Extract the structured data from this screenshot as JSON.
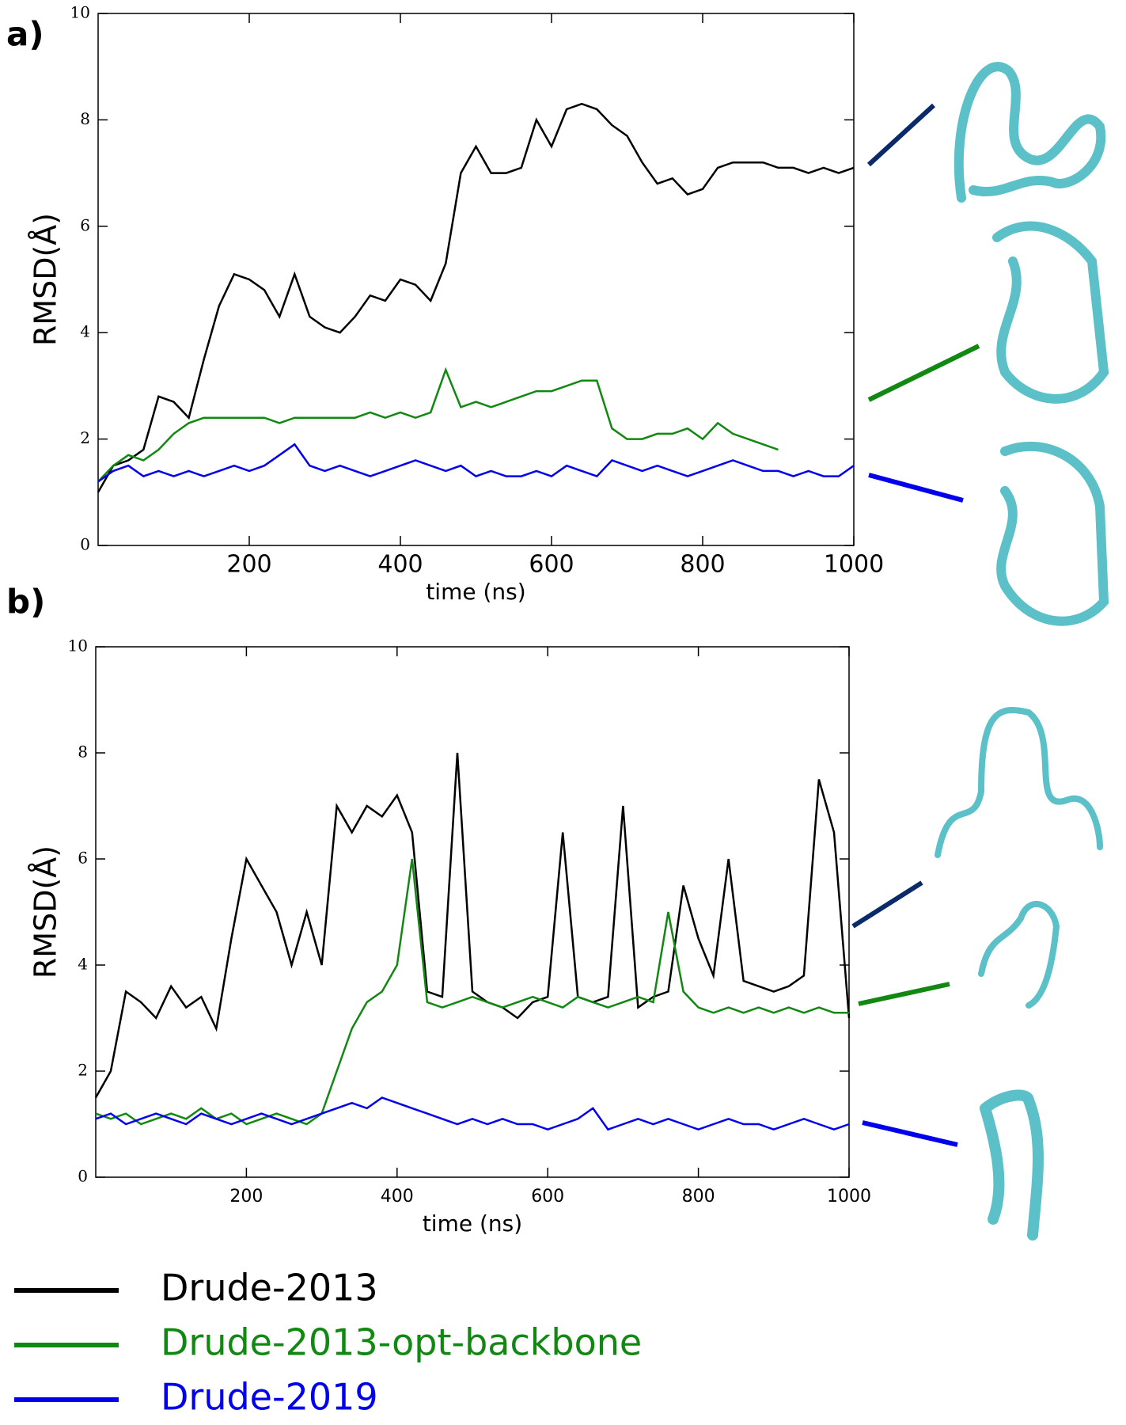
{
  "chart_data": [
    {
      "type": "line",
      "label": "a)",
      "ylabel": "RMSD(Å)",
      "xlabel": "time (ns)",
      "x": [
        0,
        20,
        40,
        60,
        80,
        100,
        120,
        140,
        160,
        180,
        200,
        220,
        240,
        260,
        280,
        300,
        320,
        340,
        360,
        380,
        400,
        420,
        440,
        460,
        480,
        500,
        520,
        540,
        560,
        580,
        600,
        620,
        640,
        660,
        680,
        700,
        720,
        740,
        760,
        780,
        800,
        820,
        840,
        860,
        880,
        900,
        920,
        940,
        960,
        980,
        1000
      ],
      "xlim": [
        0,
        1000
      ],
      "xticks": [
        200,
        400,
        600,
        800,
        1000
      ],
      "ylim": [
        0,
        10
      ],
      "yticks": [
        0,
        2,
        4,
        6,
        8,
        10
      ],
      "series": [
        {
          "name": "Drude-2013",
          "color": "#000000",
          "values": [
            1.0,
            1.5,
            1.6,
            1.8,
            2.8,
            2.7,
            2.4,
            3.5,
            4.5,
            5.1,
            5.0,
            4.8,
            4.3,
            5.1,
            4.3,
            4.1,
            4.0,
            4.3,
            4.7,
            4.6,
            5.0,
            4.9,
            4.6,
            5.3,
            7.0,
            7.5,
            7.0,
            7.0,
            7.1,
            8.0,
            7.5,
            8.2,
            8.3,
            8.2,
            7.9,
            7.7,
            7.2,
            6.8,
            6.9,
            6.6,
            6.7,
            7.1,
            7.2,
            7.2,
            7.2,
            7.1,
            7.1,
            7.0,
            7.1,
            7.0,
            7.1
          ]
        },
        {
          "name": "Drude-2013-opt-backbone",
          "color": "#118811",
          "values": [
            1.2,
            1.5,
            1.7,
            1.6,
            1.8,
            2.1,
            2.3,
            2.4,
            2.4,
            2.4,
            2.4,
            2.4,
            2.3,
            2.4,
            2.4,
            2.4,
            2.4,
            2.4,
            2.5,
            2.4,
            2.5,
            2.4,
            2.5,
            3.3,
            2.6,
            2.7,
            2.6,
            2.7,
            2.8,
            2.9,
            2.9,
            3.0,
            3.1,
            3.1,
            2.2,
            2.0,
            2.0,
            2.1,
            2.1,
            2.2,
            2.0,
            2.3,
            2.1,
            2.0,
            1.9,
            1.8,
            null,
            null,
            null,
            null,
            null
          ]
        },
        {
          "name": "Drude-2019",
          "color": "#0000ee",
          "values": [
            1.2,
            1.4,
            1.5,
            1.3,
            1.4,
            1.3,
            1.4,
            1.3,
            1.4,
            1.5,
            1.4,
            1.5,
            1.7,
            1.9,
            1.5,
            1.4,
            1.5,
            1.4,
            1.3,
            1.4,
            1.5,
            1.6,
            1.5,
            1.4,
            1.5,
            1.3,
            1.4,
            1.3,
            1.3,
            1.4,
            1.3,
            1.5,
            1.4,
            1.3,
            1.6,
            1.5,
            1.4,
            1.5,
            1.4,
            1.3,
            1.4,
            1.5,
            1.6,
            1.5,
            1.4,
            1.4,
            1.3,
            1.4,
            1.3,
            1.3,
            1.5
          ]
        }
      ]
    },
    {
      "type": "line",
      "label": "b)",
      "ylabel": "RMSD(Å)",
      "xlabel": "time (ns)",
      "x": [
        0,
        20,
        40,
        60,
        80,
        100,
        120,
        140,
        160,
        180,
        200,
        220,
        240,
        260,
        280,
        300,
        320,
        340,
        360,
        380,
        400,
        420,
        440,
        460,
        480,
        500,
        520,
        540,
        560,
        580,
        600,
        620,
        640,
        660,
        680,
        700,
        720,
        740,
        760,
        780,
        800,
        820,
        840,
        860,
        880,
        900,
        920,
        940,
        960,
        980,
        1000
      ],
      "xlim": [
        0,
        1000
      ],
      "xticks": [
        200,
        400,
        600,
        800,
        1000
      ],
      "ylim": [
        0,
        10
      ],
      "yticks": [
        0,
        2,
        4,
        6,
        8,
        10
      ],
      "series": [
        {
          "color": "#000000",
          "values": [
            1.5,
            2.0,
            3.5,
            3.3,
            3.0,
            3.6,
            3.2,
            3.4,
            2.8,
            4.5,
            6.0,
            5.5,
            5.0,
            4.0,
            5.0,
            4.0,
            7.0,
            6.5,
            7.0,
            6.8,
            7.2,
            6.5,
            3.5,
            3.4,
            8.0,
            3.5,
            3.3,
            3.2,
            3.0,
            3.3,
            3.4,
            6.5,
            3.4,
            3.3,
            3.4,
            7.0,
            3.2,
            3.4,
            3.5,
            5.5,
            4.5,
            3.8,
            6.0,
            3.7,
            3.6,
            3.5,
            3.6,
            3.8,
            7.5,
            6.5,
            3.0
          ]
        },
        {
          "color": "#118811",
          "values": [
            1.2,
            1.1,
            1.2,
            1.0,
            1.1,
            1.2,
            1.1,
            1.3,
            1.1,
            1.2,
            1.0,
            1.1,
            1.2,
            1.1,
            1.0,
            1.2,
            2.0,
            2.8,
            3.3,
            3.5,
            4.0,
            6.0,
            3.3,
            3.2,
            3.3,
            3.4,
            3.3,
            3.2,
            3.3,
            3.4,
            3.3,
            3.2,
            3.4,
            3.3,
            3.2,
            3.3,
            3.4,
            3.3,
            5.0,
            3.5,
            3.2,
            3.1,
            3.2,
            3.1,
            3.2,
            3.1,
            3.2,
            3.1,
            3.2,
            3.1,
            3.1
          ]
        },
        {
          "color": "#0000ee",
          "values": [
            1.1,
            1.2,
            1.0,
            1.1,
            1.2,
            1.1,
            1.0,
            1.2,
            1.1,
            1.0,
            1.1,
            1.2,
            1.1,
            1.0,
            1.1,
            1.2,
            1.3,
            1.4,
            1.3,
            1.5,
            1.4,
            1.3,
            1.2,
            1.1,
            1.0,
            1.1,
            1.0,
            1.1,
            1.0,
            1.0,
            0.9,
            1.0,
            1.1,
            1.3,
            0.9,
            1.0,
            1.1,
            1.0,
            1.1,
            1.0,
            0.9,
            1.0,
            1.1,
            1.0,
            1.0,
            0.9,
            1.0,
            1.1,
            1.0,
            0.9,
            1.0
          ]
        }
      ]
    }
  ]
}
